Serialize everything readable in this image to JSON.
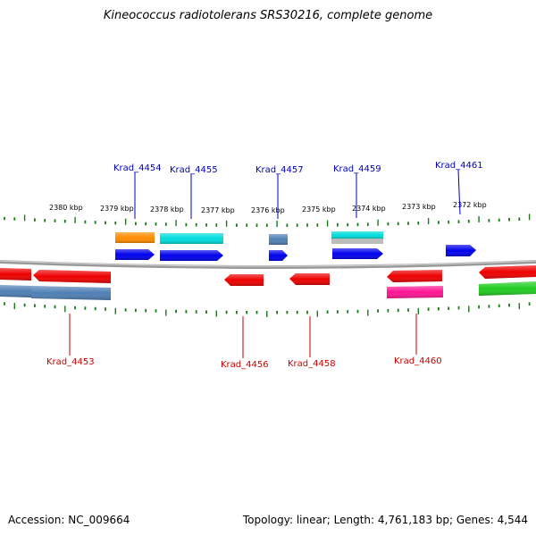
{
  "title": "Kineococcus radiotolerans SRS30216, complete genome",
  "footer": {
    "accession": "Accession: NC_009664",
    "stats": "Topology: linear; Length: 4,761,183 bp; Genes: 4,544"
  },
  "colors": {
    "blue": "#0000ee",
    "red": "#ee0000",
    "orange": "#ff8c00",
    "cyan": "#00dddd",
    "steelblue": "#4f7fb4",
    "magenta": "#ff1493",
    "green": "#22cc22",
    "grey": "#bbbbbb",
    "tick": "#1a7a1a",
    "backbone": "#888888",
    "label_blue": "#0000bb",
    "label_red": "#cc0000"
  },
  "kbp_labels": [
    "2380 kbp",
    "2379 kbp",
    "2378 kbp",
    "2377 kbp",
    "2376 kbp",
    "2375 kbp",
    "2374 kbp",
    "2373 kbp",
    "2372 kbp"
  ],
  "gene_labels_top": [
    "Krad_4454",
    "Krad_4455",
    "Krad_4457",
    "Krad_4459",
    "Krad_4461"
  ],
  "gene_labels_bottom": [
    "Krad_4453",
    "Krad_4456",
    "Krad_4458",
    "Krad_4460"
  ]
}
